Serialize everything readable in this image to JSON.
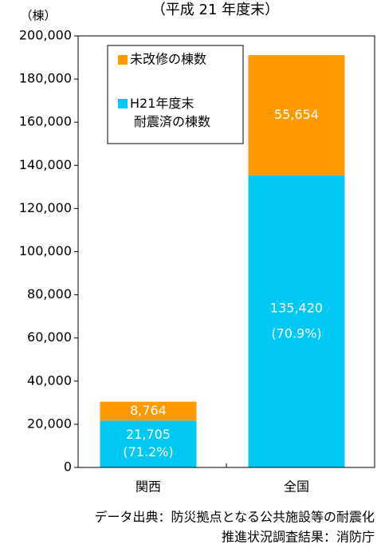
{
  "chart_data": {
    "type": "stacked_bar",
    "title": "（平成 21 年度末）",
    "unit_label": "（棟）",
    "categories": [
      "関西",
      "全国"
    ],
    "series": [
      {
        "name": "H21年度末\n耐震済の棟数",
        "color": "#00c8f5",
        "values": [
          21705,
          135420
        ],
        "value_labels": [
          "21,705",
          "135,420"
        ],
        "percent_labels": [
          "(71.2%)",
          "(70.9%)"
        ]
      },
      {
        "name": "未改修の棟数",
        "color": "#ff9900",
        "values": [
          8764,
          55654
        ],
        "value_labels": [
          "8,764",
          "55,654"
        ]
      }
    ],
    "ylim": [
      0,
      200000
    ],
    "yticks": [
      0,
      {
        "value": 20000,
        "label": "20,000"
      },
      {
        "value": 40000,
        "label": "40,000"
      },
      {
        "value": 60000,
        "label": "60,000"
      },
      {
        "value": 80000,
        "label": "80,000"
      },
      {
        "value": 100000,
        "label": "100,000"
      },
      {
        "value": 120000,
        "label": "120,000"
      },
      {
        "value": 140000,
        "label": "140,000"
      },
      {
        "value": 160000,
        "label": "160,000"
      },
      {
        "value": 180000,
        "label": "180,000"
      },
      {
        "value": 200000,
        "label": "200,000"
      }
    ],
    "grid": false,
    "source": [
      "データ出典：防災拠点となる公共施設等の耐震化",
      "推進状況調査結果：消防庁"
    ]
  }
}
